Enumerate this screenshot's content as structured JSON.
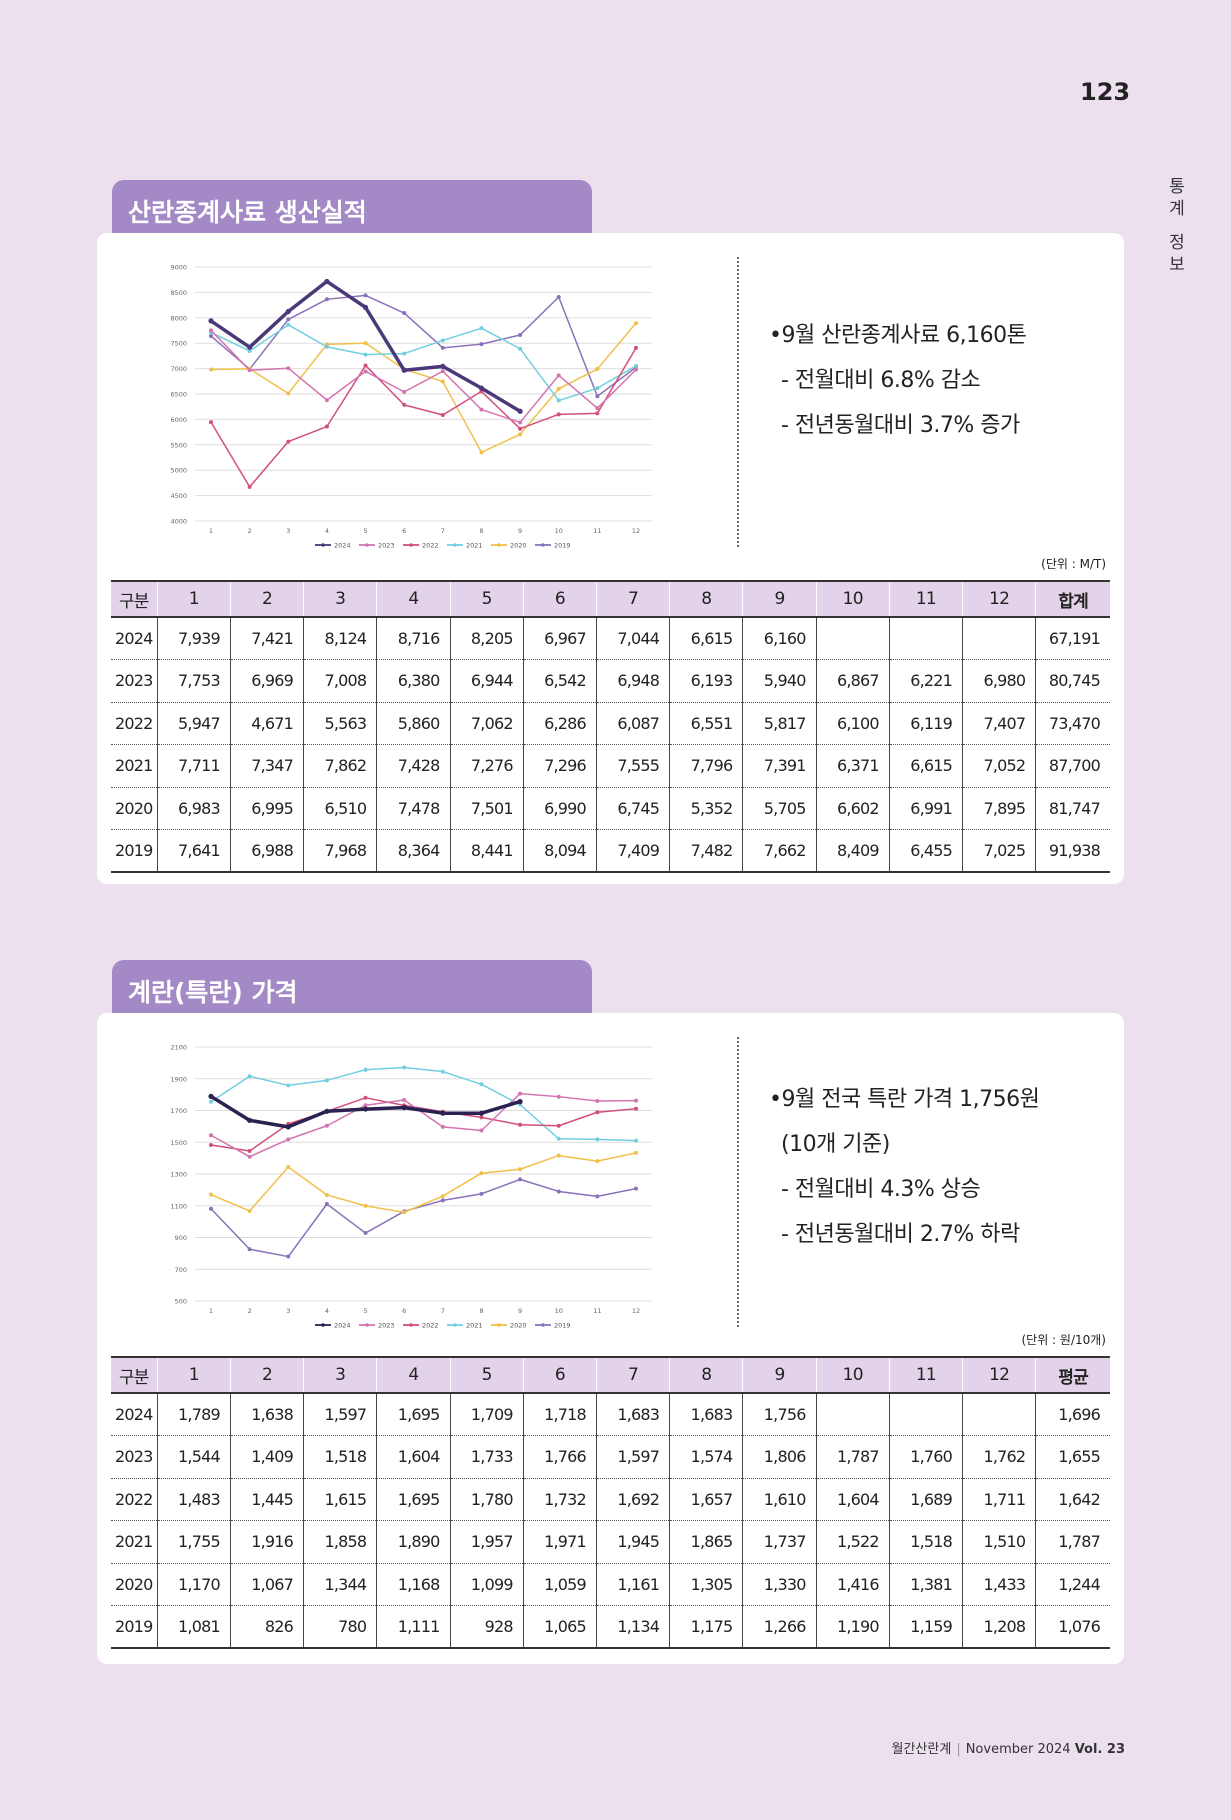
{
  "page": {
    "number": "123",
    "side_tab": [
      "통",
      "계",
      "정",
      "보"
    ]
  },
  "sections": [
    {
      "title": "산란종계사료 생산실적",
      "summary": [
        "•9월 산란종계사료 6,160톤",
        "- 전월대비 6.8% 감소",
        "- 전년동월대비 3.7% 증가"
      ],
      "unit": "(단위 : M/T)",
      "table": {
        "headers": [
          "구분",
          "1",
          "2",
          "3",
          "4",
          "5",
          "6",
          "7",
          "8",
          "9",
          "10",
          "11",
          "12",
          "합계"
        ],
        "rows": [
          [
            "2024",
            "7,939",
            "7,421",
            "8,124",
            "8,716",
            "8,205",
            "6,967",
            "7,044",
            "6,615",
            "6,160",
            "",
            "",
            "",
            "67,191"
          ],
          [
            "2023",
            "7,753",
            "6,969",
            "7,008",
            "6,380",
            "6,944",
            "6,542",
            "6,948",
            "6,193",
            "5,940",
            "6,867",
            "6,221",
            "6,980",
            "80,745"
          ],
          [
            "2022",
            "5,947",
            "4,671",
            "5,563",
            "5,860",
            "7,062",
            "6,286",
            "6,087",
            "6,551",
            "5,817",
            "6,100",
            "6,119",
            "7,407",
            "73,470"
          ],
          [
            "2021",
            "7,711",
            "7,347",
            "7,862",
            "7,428",
            "7,276",
            "7,296",
            "7,555",
            "7,796",
            "7,391",
            "6,371",
            "6,615",
            "7,052",
            "87,700"
          ],
          [
            "2020",
            "6,983",
            "6,995",
            "6,510",
            "7,478",
            "7,501",
            "6,990",
            "6,745",
            "5,352",
            "5,705",
            "6,602",
            "6,991",
            "7,895",
            "81,747"
          ],
          [
            "2019",
            "7,641",
            "6,988",
            "7,968",
            "8,364",
            "8,441",
            "8,094",
            "7,409",
            "7,482",
            "7,662",
            "8,409",
            "6,455",
            "7,025",
            "91,938"
          ]
        ]
      }
    },
    {
      "title": "계란(특란) 가격",
      "summary": [
        "•9월 전국 특란 가격 1,756원",
        "(10개 기준)",
        "- 전월대비 4.3% 상승",
        "- 전년동월대비 2.7% 하락"
      ],
      "unit": "(단위 : 원/10개)",
      "table": {
        "headers": [
          "구분",
          "1",
          "2",
          "3",
          "4",
          "5",
          "6",
          "7",
          "8",
          "9",
          "10",
          "11",
          "12",
          "평균"
        ],
        "rows": [
          [
            "2024",
            "1,789",
            "1,638",
            "1,597",
            "1,695",
            "1,709",
            "1,718",
            "1,683",
            "1,683",
            "1,756",
            "",
            "",
            "",
            "1,696"
          ],
          [
            "2023",
            "1,544",
            "1,409",
            "1,518",
            "1,604",
            "1,733",
            "1,766",
            "1,597",
            "1,574",
            "1,806",
            "1,787",
            "1,760",
            "1,762",
            "1,655"
          ],
          [
            "2022",
            "1,483",
            "1,445",
            "1,615",
            "1,695",
            "1,780",
            "1,732",
            "1,692",
            "1,657",
            "1,610",
            "1,604",
            "1,689",
            "1,711",
            "1,642"
          ],
          [
            "2021",
            "1,755",
            "1,916",
            "1,858",
            "1,890",
            "1,957",
            "1,971",
            "1,945",
            "1,865",
            "1,737",
            "1,522",
            "1,518",
            "1,510",
            "1,787"
          ],
          [
            "2020",
            "1,170",
            "1,067",
            "1,344",
            "1,168",
            "1,099",
            "1,059",
            "1,161",
            "1,305",
            "1,330",
            "1,416",
            "1,381",
            "1,433",
            "1,244"
          ],
          [
            "2019",
            "1,081",
            "826",
            "780",
            "1,111",
            "928",
            "1,065",
            "1,134",
            "1,175",
            "1,266",
            "1,190",
            "1,159",
            "1,208",
            "1,076"
          ]
        ]
      }
    }
  ],
  "chart_data": [
    {
      "type": "line",
      "title": "",
      "x": [
        1,
        2,
        3,
        4,
        5,
        6,
        7,
        8,
        9,
        10,
        11,
        12
      ],
      "xlabel": "",
      "ylabel": "",
      "ylim": [
        4000,
        9000
      ],
      "yticks": [
        4000,
        4500,
        5000,
        5500,
        6000,
        6500,
        7000,
        7500,
        8000,
        8500,
        9000
      ],
      "grid": true,
      "legend": "bottom",
      "series": [
        {
          "name": "2024",
          "color": "#4a3878",
          "values": [
            7939,
            7421,
            8124,
            8716,
            8205,
            6967,
            7044,
            6615,
            6160,
            null,
            null,
            null
          ]
        },
        {
          "name": "2023",
          "color": "#d374b1",
          "values": [
            7753,
            6969,
            7008,
            6380,
            6944,
            6542,
            6948,
            6193,
            5940,
            6867,
            6221,
            6980
          ]
        },
        {
          "name": "2022",
          "color": "#d24f7a",
          "values": [
            5947,
            4671,
            5563,
            5860,
            7062,
            6286,
            6087,
            6551,
            5817,
            6100,
            6119,
            7407
          ]
        },
        {
          "name": "2021",
          "color": "#72cfe0",
          "values": [
            7711,
            7347,
            7862,
            7428,
            7276,
            7296,
            7555,
            7796,
            7391,
            6371,
            6615,
            7052
          ]
        },
        {
          "name": "2020",
          "color": "#f0c04a",
          "values": [
            6983,
            6995,
            6510,
            7478,
            7501,
            6990,
            6745,
            5352,
            5705,
            6602,
            6991,
            7895
          ]
        },
        {
          "name": "2019",
          "color": "#8a72b8",
          "values": [
            7641,
            6988,
            7968,
            8364,
            8441,
            8094,
            7409,
            7482,
            7662,
            8409,
            6455,
            7025
          ]
        }
      ]
    },
    {
      "type": "line",
      "title": "",
      "x": [
        1,
        2,
        3,
        4,
        5,
        6,
        7,
        8,
        9,
        10,
        11,
        12
      ],
      "xlabel": "",
      "ylabel": "",
      "ylim": [
        500,
        2100
      ],
      "yticks": [
        500,
        700,
        900,
        1100,
        1300,
        1500,
        1700,
        1900,
        2100
      ],
      "grid": true,
      "legend": "bottom",
      "series": [
        {
          "name": "2024",
          "color": "#2a2250",
          "values": [
            1789,
            1638,
            1597,
            1695,
            1709,
            1718,
            1683,
            1683,
            1756,
            null,
            null,
            null
          ]
        },
        {
          "name": "2023",
          "color": "#d374b1",
          "values": [
            1544,
            1409,
            1518,
            1604,
            1733,
            1766,
            1597,
            1574,
            1806,
            1787,
            1760,
            1762
          ]
        },
        {
          "name": "2022",
          "color": "#d24f7a",
          "values": [
            1483,
            1445,
            1615,
            1695,
            1780,
            1732,
            1692,
            1657,
            1610,
            1604,
            1689,
            1711
          ]
        },
        {
          "name": "2021",
          "color": "#72cfe0",
          "values": [
            1755,
            1916,
            1858,
            1890,
            1957,
            1971,
            1945,
            1865,
            1737,
            1522,
            1518,
            1510
          ]
        },
        {
          "name": "2020",
          "color": "#f0c04a",
          "values": [
            1170,
            1067,
            1344,
            1168,
            1099,
            1059,
            1161,
            1305,
            1330,
            1416,
            1381,
            1433
          ]
        },
        {
          "name": "2019",
          "color": "#8a72b8",
          "values": [
            1081,
            826,
            780,
            1111,
            928,
            1065,
            1134,
            1175,
            1266,
            1190,
            1159,
            1208
          ]
        }
      ]
    }
  ],
  "footer": {
    "publication": "월간산란계",
    "issue": "November 2024",
    "volume": "Vol. 23"
  }
}
